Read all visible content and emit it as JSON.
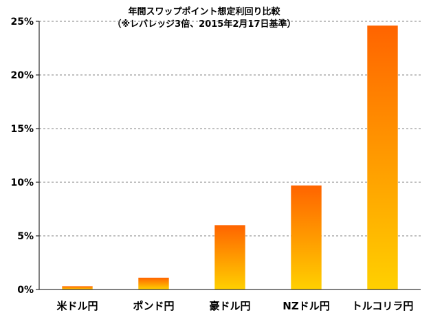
{
  "chart_data": {
    "type": "bar",
    "title": "年間スワップポイント想定利回り比較",
    "subtitle": "（※レバレッジ3倍、2015年2月17日基準）",
    "categories": [
      "米ドル円",
      "ポンド円",
      "豪ドル円",
      "NZドル円",
      "トルコリラ円"
    ],
    "values": [
      0.3,
      1.1,
      6.0,
      9.7,
      24.6
    ],
    "ylim": [
      0,
      25
    ],
    "yticks": [
      0,
      5,
      10,
      15,
      20,
      25
    ],
    "ytick_labels": [
      "0%",
      "5%",
      "10%",
      "15%",
      "20%",
      "25%"
    ],
    "grid": true,
    "gradient_colors": {
      "top": "#ff6400",
      "bottom": "#ffd000"
    }
  }
}
